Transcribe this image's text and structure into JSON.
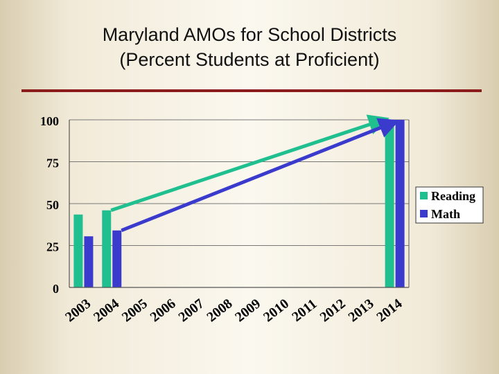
{
  "slide": {
    "title_line1": "Maryland AMOs for School Districts",
    "title_line2": "(Percent Students at Proficient)",
    "rule_color": "#8c1c1c"
  },
  "chart_data": {
    "type": "bar",
    "categories": [
      "2003",
      "2004",
      "2005",
      "2006",
      "2007",
      "2008",
      "2009",
      "2010",
      "2011",
      "2012",
      "2013",
      "2014"
    ],
    "series": [
      {
        "name": "Reading",
        "color": "#1fbf8f",
        "values": [
          43.5,
          46,
          null,
          null,
          null,
          null,
          null,
          null,
          null,
          null,
          null,
          100
        ]
      },
      {
        "name": "Math",
        "color": "#3a3acc",
        "values": [
          30.5,
          34,
          null,
          null,
          null,
          null,
          null,
          null,
          null,
          null,
          null,
          100
        ]
      }
    ],
    "yticks": [
      0,
      25,
      50,
      75,
      100
    ],
    "ylim": [
      0,
      100
    ],
    "grid": true,
    "legend_position": "right",
    "annotations": [
      {
        "type": "arrow",
        "series": "Reading",
        "from_category": "2004",
        "from_value": 46,
        "to_category": "2014",
        "to_value": 100,
        "color": "#1fbf8f"
      },
      {
        "type": "arrow",
        "series": "Math",
        "from_category": "2004",
        "from_value": 34,
        "to_category": "2014",
        "to_value": 100,
        "color": "#3a3acc"
      }
    ]
  }
}
